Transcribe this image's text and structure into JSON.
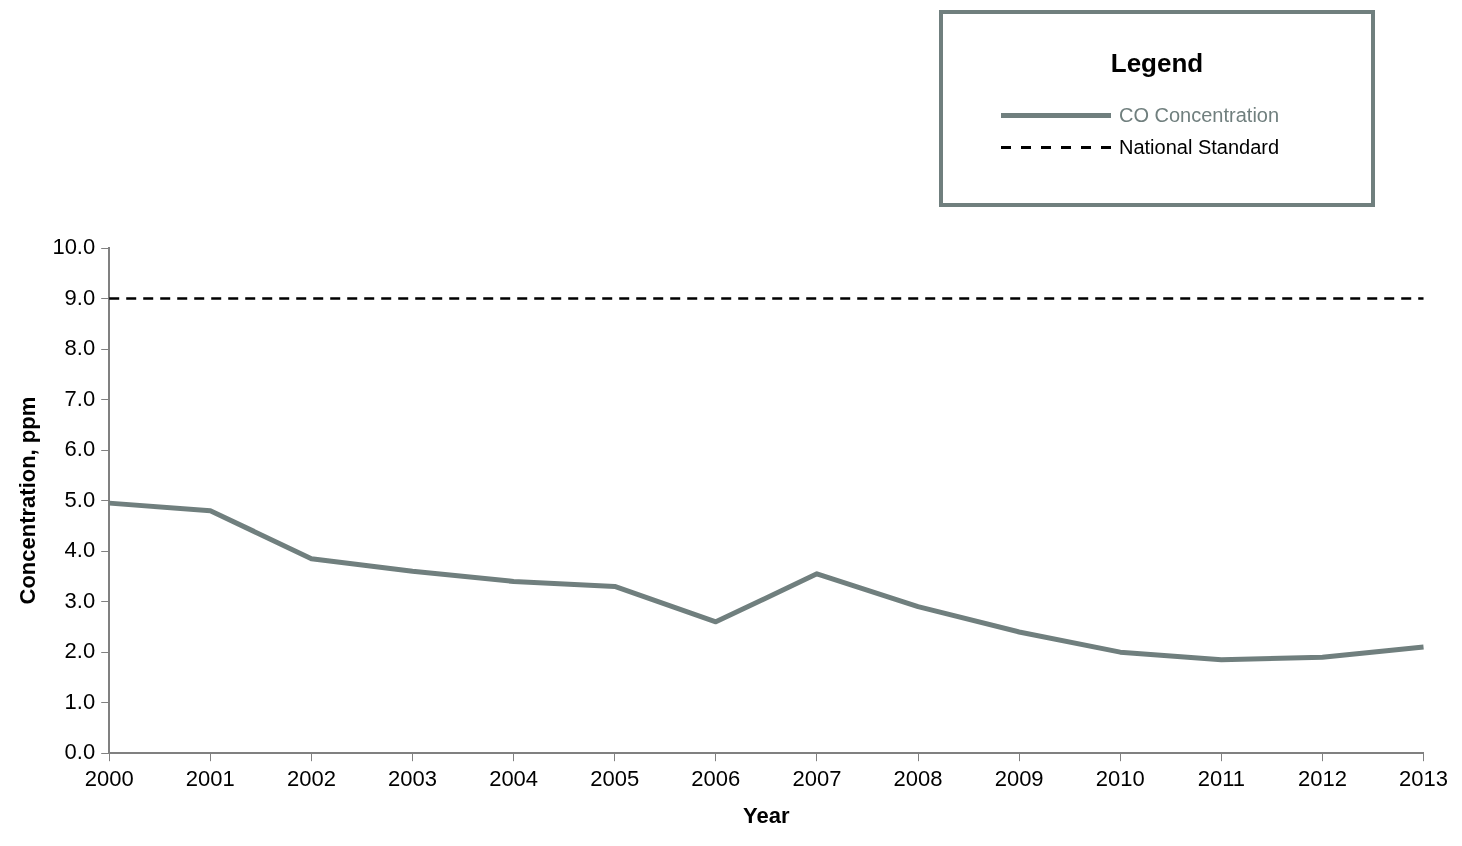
{
  "chart_data": {
    "type": "line",
    "xlabel": "Year",
    "ylabel": "Concentration, ppm",
    "legend_title": "Legend",
    "legend": "top right",
    "grid": false,
    "marker": "none",
    "categories": [
      "2000",
      "2001",
      "2002",
      "2003",
      "2004",
      "2005",
      "2006",
      "2007",
      "2008",
      "2009",
      "2010",
      "2011",
      "2012",
      "2013"
    ],
    "ylim": [
      0,
      10
    ],
    "yticks": [
      {
        "value": 0,
        "label": "0.0"
      },
      {
        "value": 1,
        "label": "1.0"
      },
      {
        "value": 2,
        "label": "2.0"
      },
      {
        "value": 3,
        "label": "3.0"
      },
      {
        "value": 4,
        "label": "4.0"
      },
      {
        "value": 5,
        "label": "5.0"
      },
      {
        "value": 6,
        "label": "6.0"
      },
      {
        "value": 7,
        "label": "7.0"
      },
      {
        "value": 8,
        "label": "8.0"
      },
      {
        "value": 9,
        "label": "9.0"
      },
      {
        "value": 10,
        "label": "10.0"
      }
    ],
    "series": [
      {
        "name": "CO Concentration",
        "color": "#707f7e",
        "line_style": "solid",
        "values": [
          4.95,
          4.8,
          3.85,
          3.6,
          3.4,
          3.3,
          2.6,
          3.55,
          2.9,
          2.4,
          2.0,
          1.85,
          1.9,
          2.1
        ]
      },
      {
        "name": "National Standard",
        "color": "#000000",
        "line_style": "dashed",
        "values": [
          9,
          9,
          9,
          9,
          9,
          9,
          9,
          9,
          9,
          9,
          9,
          9,
          9,
          9
        ]
      }
    ]
  }
}
